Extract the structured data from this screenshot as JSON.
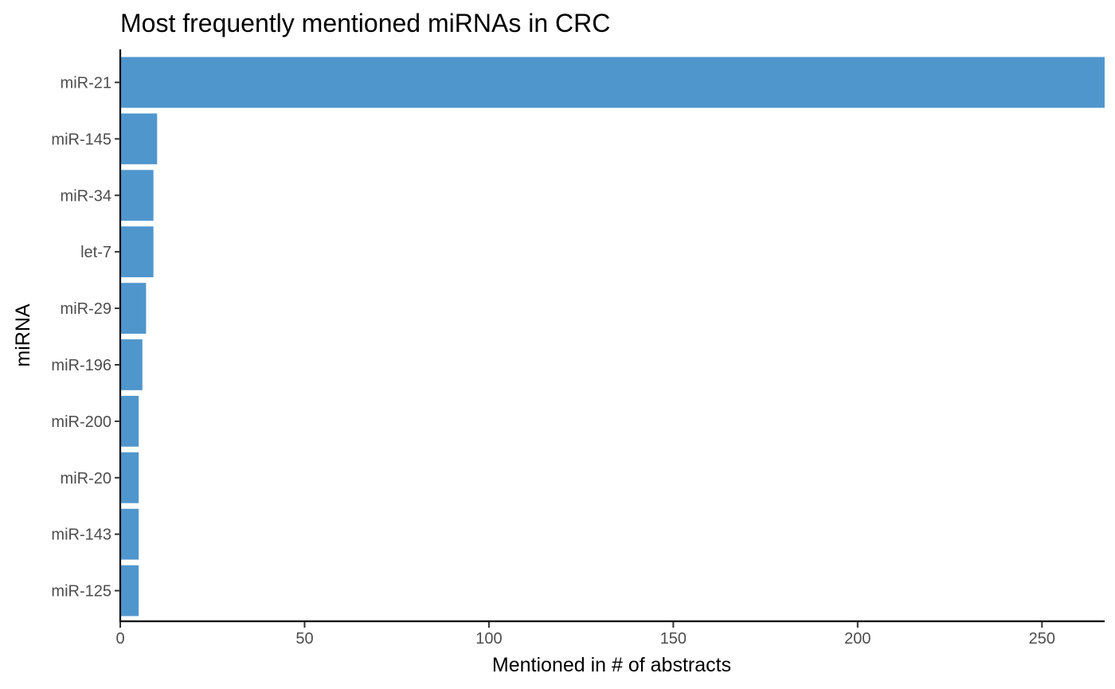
{
  "chart_data": {
    "type": "bar",
    "orientation": "horizontal",
    "title": "Most frequently mentioned miRNAs in CRC",
    "xlabel": "Mentioned in # of abstracts",
    "ylabel": "miRNA",
    "categories": [
      "miR-21",
      "miR-145",
      "miR-34",
      "let-7",
      "miR-29",
      "miR-196",
      "miR-200",
      "miR-20",
      "miR-143",
      "miR-125"
    ],
    "values": [
      267,
      10,
      9,
      9,
      7,
      6,
      5,
      5,
      5,
      5
    ],
    "xlim": [
      0,
      267
    ],
    "x_ticks": [
      0,
      50,
      100,
      150,
      200,
      250
    ],
    "bar_color": "#4F96CD",
    "grid": false,
    "legend": "none"
  }
}
